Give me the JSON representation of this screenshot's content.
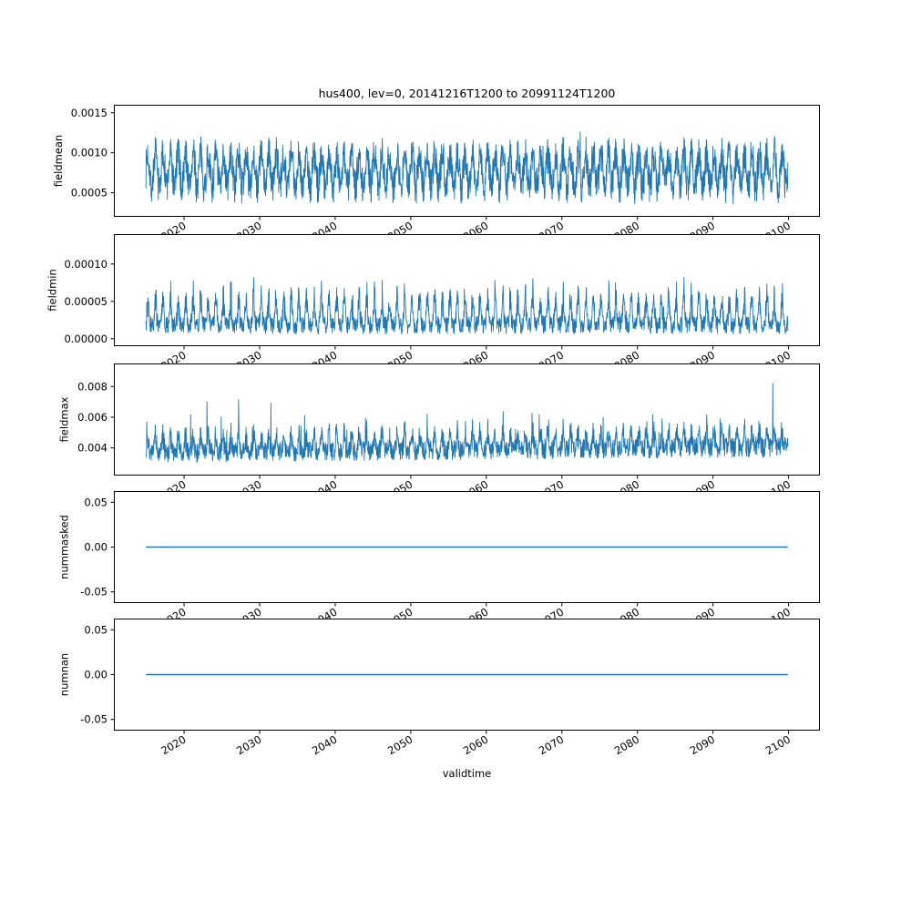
{
  "chart_data": {
    "type": "line",
    "title": "hus400, lev=0, 20141216T1200 to 20991124T1200",
    "line_color": "#1f77b4",
    "grid": false,
    "legend": "none",
    "x": {
      "label": "validtime",
      "lim": [
        2010.71,
        2104.15
      ],
      "data_start": 2014.96,
      "data_end": 2099.9,
      "ticks": [
        2020,
        2030,
        2040,
        2050,
        2060,
        2070,
        2080,
        2090,
        2100
      ],
      "tick_labels": [
        "2020",
        "2030",
        "2040",
        "2050",
        "2060",
        "2070",
        "2080",
        "2090",
        "2100"
      ],
      "tick_rotation": 30
    },
    "panels": [
      {
        "name": "fieldmean",
        "ylabel": "fieldmean",
        "ylim": [
          0.0002,
          0.0016
        ],
        "yticks": [
          {
            "v": 0.0005,
            "label": "0.0005"
          },
          {
            "v": 0.001,
            "label": "0.0010"
          },
          {
            "v": 0.0015,
            "label": "0.0015"
          }
        ],
        "series": {
          "kind": "noisy",
          "note": "dense 12-hourly series 2015-2099, approximated synthetically",
          "seed": 7,
          "n": 2400,
          "cycles": 85,
          "base": 0.00078,
          "trend": 0,
          "noise_centered": true,
          "noise_amp": 0.00023,
          "season_mode": "sin",
          "season_amp": 0.0002,
          "season_pow": 1,
          "spike_prob": 0.003,
          "spike_amp": 0.00045,
          "clamp": [
            0.00028,
            0.00152
          ],
          "approx_envelope": {
            "typical_min": 0.00035,
            "typical_max": 0.0012,
            "peak": 0.0015
          }
        }
      },
      {
        "name": "fieldmin",
        "ylabel": "fieldmin",
        "ylim": [
          -1e-05,
          0.00014
        ],
        "yticks": [
          {
            "v": 0.0,
            "label": "0.00000"
          },
          {
            "v": 5e-05,
            "label": "0.00005"
          },
          {
            "v": 0.0001,
            "label": "0.00010"
          }
        ],
        "series": {
          "kind": "noisy",
          "note": "dense 12-hourly series 2015-2099, approximated synthetically",
          "seed": 13,
          "n": 2400,
          "cycles": 85,
          "base": 6e-06,
          "trend": 0,
          "noise_centered": false,
          "noise_amp": 2.4e-05,
          "season_mode": "comb",
          "season_amp": 5.5e-05,
          "season_pow": 3,
          "spike_prob": 0.002,
          "spike_amp": 6e-05,
          "clamp": [
            2e-06,
            0.000132
          ],
          "approx_envelope": {
            "typical_min": 5e-06,
            "typical_max": 8e-05,
            "peak": 0.00013
          }
        }
      },
      {
        "name": "fieldmax",
        "ylabel": "fieldmax",
        "ylim": [
          0.0022,
          0.0095
        ],
        "yticks": [
          {
            "v": 0.004,
            "label": "0.004"
          },
          {
            "v": 0.006,
            "label": "0.006"
          },
          {
            "v": 0.008,
            "label": "0.008"
          }
        ],
        "series": {
          "kind": "noisy",
          "note": "dense 12-hourly series 2015-2099, approximated synthetically",
          "seed": 29,
          "n": 2400,
          "cycles": 85,
          "base": 0.003,
          "trend": 0.0004,
          "noise_centered": false,
          "noise_amp": 0.0013,
          "season_mode": "comb",
          "season_amp": 0.0016,
          "season_pow": 3,
          "spike_prob": 0.012,
          "spike_amp": 0.0045,
          "clamp": [
            0.00275,
            0.0091
          ],
          "approx_envelope": {
            "typical_min": 0.003,
            "typical_max": 0.005,
            "peak": 0.009
          }
        }
      },
      {
        "name": "nummasked",
        "ylabel": "nummasked",
        "ylim": [
          -0.0625,
          0.0625
        ],
        "yticks": [
          {
            "v": -0.05,
            "label": "-0.05"
          },
          {
            "v": 0.0,
            "label": "0.00"
          },
          {
            "v": 0.05,
            "label": "0.05"
          }
        ],
        "series": {
          "kind": "constant",
          "value": 0
        }
      },
      {
        "name": "numnan",
        "ylabel": "numnan",
        "ylim": [
          -0.0625,
          0.0625
        ],
        "yticks": [
          {
            "v": -0.05,
            "label": "-0.05"
          },
          {
            "v": 0.0,
            "label": "0.00"
          },
          {
            "v": 0.05,
            "label": "0.05"
          }
        ],
        "series": {
          "kind": "constant",
          "value": 0
        }
      }
    ]
  }
}
